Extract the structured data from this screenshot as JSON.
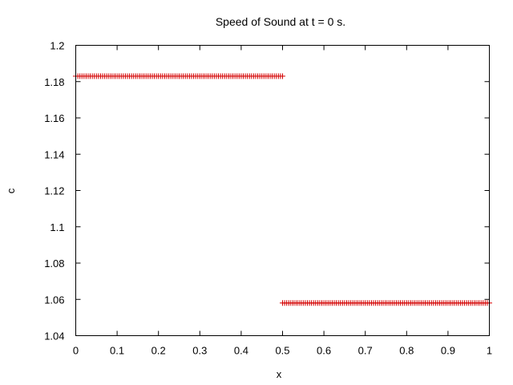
{
  "chart_data": {
    "type": "scatter",
    "title": "Speed of Sound at t = 0 s.",
    "xlabel": "x",
    "ylabel": "c",
    "xlim": [
      0,
      1
    ],
    "ylim": [
      1.04,
      1.2
    ],
    "x_ticks": [
      0,
      0.1,
      0.2,
      0.3,
      0.4,
      0.5,
      0.6,
      0.7,
      0.8,
      0.9,
      1
    ],
    "x_tick_labels": [
      "0",
      "0.1",
      "0.2",
      "0.3",
      "0.4",
      "0.5",
      "0.6",
      "0.7",
      "0.8",
      "0.9",
      "1"
    ],
    "y_ticks": [
      1.04,
      1.06,
      1.08,
      1.1,
      1.12,
      1.14,
      1.16,
      1.18,
      1.2
    ],
    "y_tick_labels": [
      "1.04",
      "1.06",
      "1.08",
      "1.1",
      "1.12",
      "1.14",
      "1.16",
      "1.18",
      "1.2"
    ],
    "grid": false,
    "legend": "none",
    "marker": "plus",
    "color": "#d40000",
    "series": [
      {
        "name": "c",
        "segments": [
          {
            "x_start": 0.0,
            "x_end": 0.5,
            "y": 1.183
          },
          {
            "x_start": 0.5,
            "x_end": 1.0,
            "y": 1.058
          }
        ],
        "point_spacing": 0.005
      }
    ]
  }
}
